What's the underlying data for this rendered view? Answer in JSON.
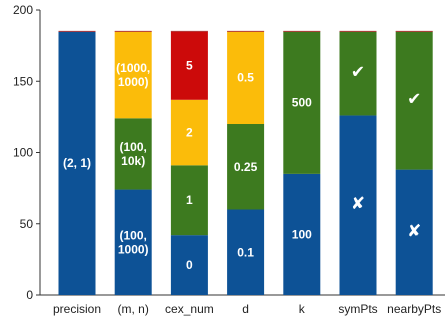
{
  "chart_data": {
    "type": "bar",
    "stacked": true,
    "title": "",
    "xlabel": "",
    "ylabel": "",
    "ylim": [
      0,
      200
    ],
    "yticks": [
      0,
      50,
      100,
      150,
      200
    ],
    "grid": false,
    "legend": "none",
    "total": 185,
    "categories": [
      "precision",
      "(m, n)",
      "cex_num",
      "d",
      "k",
      "symPts",
      "nearbyPts"
    ],
    "bars": [
      {
        "category": "precision",
        "segments": [
          {
            "value": 185,
            "color": "#0d5296",
            "label": "(2, 1)"
          }
        ]
      },
      {
        "category": "(m, n)",
        "segments": [
          {
            "value": 74,
            "color": "#0d5296",
            "label": "(100,\n1000)"
          },
          {
            "value": 50,
            "color": "#3d7a1f",
            "label": "(100,\n10k)"
          },
          {
            "value": 61,
            "color": "#fbbc0a",
            "label": "(1000,\n1000)"
          }
        ]
      },
      {
        "category": "cex_num",
        "segments": [
          {
            "value": 42,
            "color": "#0d5296",
            "label": "0"
          },
          {
            "value": 49,
            "color": "#3d7a1f",
            "label": "1"
          },
          {
            "value": 46,
            "color": "#fbbc0a",
            "label": "2"
          },
          {
            "value": 48,
            "color": "#cc0a0a",
            "label": "5"
          }
        ]
      },
      {
        "category": "d",
        "segments": [
          {
            "value": 60,
            "color": "#0d5296",
            "label": "0.1"
          },
          {
            "value": 60,
            "color": "#3d7a1f",
            "label": "0.25"
          },
          {
            "value": 65,
            "color": "#fbbc0a",
            "label": "0.5"
          }
        ]
      },
      {
        "category": "k",
        "segments": [
          {
            "value": 85,
            "color": "#0d5296",
            "label": "100"
          },
          {
            "value": 100,
            "color": "#3d7a1f",
            "label": "500"
          }
        ]
      },
      {
        "category": "symPts",
        "segments": [
          {
            "value": 126,
            "color": "#0d5296",
            "label": "✘"
          },
          {
            "value": 59,
            "color": "#3d7a1f",
            "label": "✔"
          }
        ]
      },
      {
        "category": "nearbyPts",
        "segments": [
          {
            "value": 88,
            "color": "#0d5296",
            "label": "✘"
          },
          {
            "value": 97,
            "color": "#3d7a1f",
            "label": "✔"
          }
        ]
      }
    ]
  }
}
